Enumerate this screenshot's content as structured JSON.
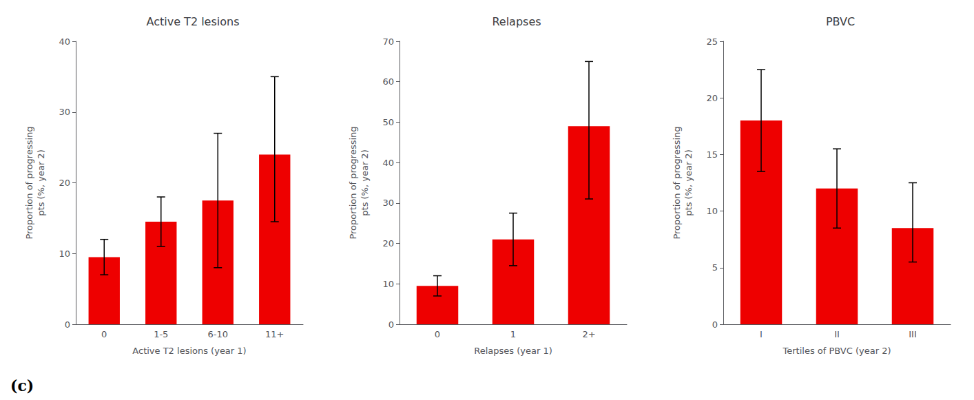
{
  "chart_data": [
    {
      "type": "bar",
      "title": "Active T2 lesions",
      "categories": [
        "0",
        "1-5",
        "6-10",
        "11+"
      ],
      "values": [
        9.5,
        14.5,
        17.5,
        24.0
      ],
      "errors_upper": [
        2.5,
        3.5,
        9.5,
        11.0
      ],
      "errors_lower": [
        2.5,
        3.5,
        9.5,
        9.5
      ],
      "xlabel": "Active T2 lesions (year 1)",
      "ylabel": "Proportion of progressing\npts (%, year 2)",
      "ylim": [
        0,
        40
      ],
      "yticks": [
        0,
        10,
        20,
        30,
        40
      ],
      "color": "#ee0000",
      "grid": false,
      "annotation": "(c)"
    },
    {
      "type": "bar",
      "title": "Relapses",
      "categories": [
        "0",
        "1",
        "2+"
      ],
      "values": [
        9.5,
        21.0,
        49.0
      ],
      "errors_upper": [
        2.5,
        6.5,
        16.0
      ],
      "errors_lower": [
        2.5,
        6.5,
        18.0
      ],
      "xlabel": "Relapses (year 1)",
      "ylabel": "Proportion of progressing\npts (%, year 2)",
      "ylim": [
        0,
        70
      ],
      "yticks": [
        0,
        10,
        20,
        30,
        40,
        50,
        60,
        70
      ],
      "color": "#ee0000",
      "grid": false
    },
    {
      "type": "bar",
      "title": "PBVC",
      "categories": [
        "I",
        "II",
        "III"
      ],
      "values": [
        18.0,
        12.0,
        8.5
      ],
      "errors_upper": [
        4.5,
        3.5,
        4.0
      ],
      "errors_lower": [
        4.5,
        3.5,
        3.0
      ],
      "xlabel": "Tertiles of PBVC (year 2)",
      "ylabel": "Proportion of progressing\npts (%, year 2)",
      "ylim": [
        0,
        25
      ],
      "yticks": [
        0,
        5,
        10,
        15,
        20,
        25
      ],
      "color": "#ee0000",
      "grid": false
    }
  ]
}
